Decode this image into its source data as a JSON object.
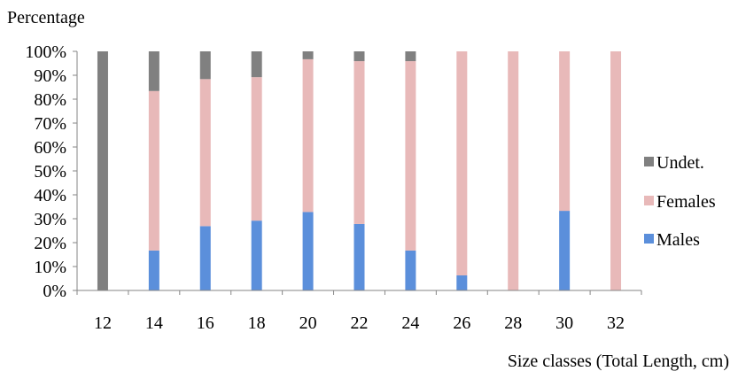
{
  "chart_data": {
    "type": "bar",
    "stacked": true,
    "percent_stacked": true,
    "title": "",
    "ylabel": "Percentage",
    "xlabel": "Size classes (Total Length, cm)",
    "categories": [
      "12",
      "14",
      "16",
      "18",
      "20",
      "22",
      "24",
      "26",
      "28",
      "30",
      "32"
    ],
    "ylim": [
      0,
      100
    ],
    "yticks": [
      "0%",
      "10%",
      "20%",
      "30%",
      "40%",
      "50%",
      "60%",
      "70%",
      "80%",
      "90%",
      "100%"
    ],
    "series": [
      {
        "name": "Males",
        "color": "#5B8FDB",
        "values": [
          0,
          16.7,
          26.9,
          29.2,
          32.8,
          27.8,
          16.7,
          6.3,
          0,
          33.3,
          0
        ]
      },
      {
        "name": "Females",
        "color": "#E8B9B9",
        "values": [
          0,
          66.7,
          61.5,
          60.0,
          63.9,
          68.1,
          79.2,
          93.7,
          100,
          66.7,
          100
        ]
      },
      {
        "name": "Undet.",
        "color": "#808080",
        "values": [
          100,
          16.6,
          11.6,
          10.8,
          3.3,
          4.1,
          4.1,
          0,
          0,
          0,
          0
        ]
      }
    ],
    "legend": {
      "position": "right",
      "order": [
        "Undet.",
        "Females",
        "Males"
      ]
    },
    "grid": false
  }
}
